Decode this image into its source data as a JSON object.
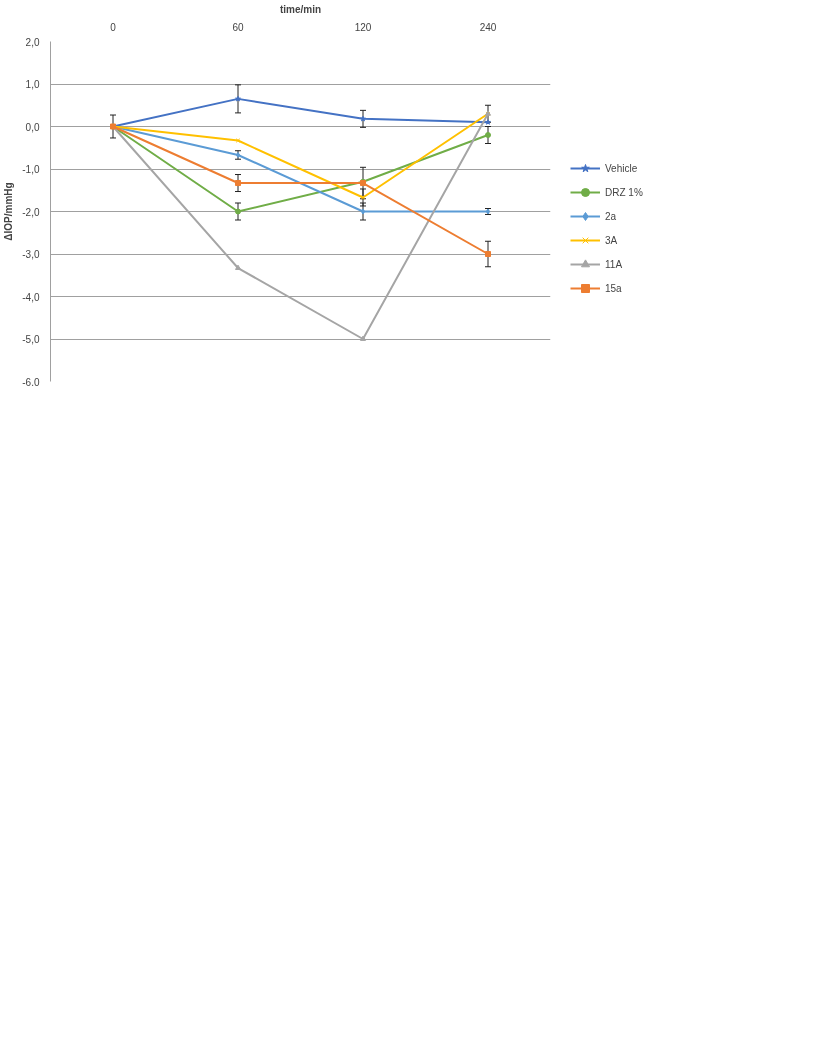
{
  "chart_data": {
    "type": "line",
    "xlabel": "time/min",
    "ylabel": "ΔIOP/mmHg",
    "categories": [
      "0",
      "60",
      "120",
      "240"
    ],
    "ylim": [
      -6,
      2
    ],
    "yticks": [
      {
        "value": -6,
        "label": "-6,0"
      },
      {
        "value": -5,
        "label": "-5,0"
      },
      {
        "value": -4,
        "label": "-4,0"
      },
      {
        "value": -3,
        "label": "-3,0"
      },
      {
        "value": -2,
        "label": "-2,0"
      },
      {
        "value": -1,
        "label": "-1,0"
      },
      {
        "value": 0,
        "label": "0,0"
      },
      {
        "value": 1,
        "label": "1,0"
      },
      {
        "value": 2,
        "label": "2,0"
      }
    ],
    "grid": "y",
    "legend": "right",
    "series": [
      {
        "name": "Vehicle",
        "color": "#4472c4",
        "marker": "star",
        "values": [
          0,
          0.65,
          0.18,
          0.1
        ],
        "errors": [
          0.27,
          0.33,
          0.2,
          null
        ]
      },
      {
        "name": "DRZ 1%",
        "color": "#70ad47",
        "marker": "circle",
        "values": [
          0,
          -2.0,
          -1.3,
          -0.2
        ],
        "errors": [
          null,
          0.2,
          null,
          0.2
        ]
      },
      {
        "name": "2a",
        "color": "#5b9bd5",
        "marker": "diamond",
        "values": [
          0,
          -0.67,
          -2.0,
          -2.0
        ],
        "errors": [
          null,
          0.1,
          0.2,
          0.07
        ]
      },
      {
        "name": "3A",
        "color": "#ffc000",
        "marker": "cross",
        "values": [
          0,
          -0.33,
          -1.67,
          0.3
        ],
        "errors": [
          null,
          null,
          0.2,
          0.2
        ]
      },
      {
        "name": "11A",
        "color": "#a5a5a5",
        "marker": "triangle",
        "values": [
          0,
          -3.33,
          -5.0,
          0.3
        ]
      },
      {
        "name": "15a",
        "color": "#ed7d31",
        "marker": "square",
        "values": [
          0,
          -1.33,
          -1.33,
          -3.0
        ],
        "errors": [
          null,
          0.2,
          0.37,
          0.3
        ]
      }
    ]
  }
}
